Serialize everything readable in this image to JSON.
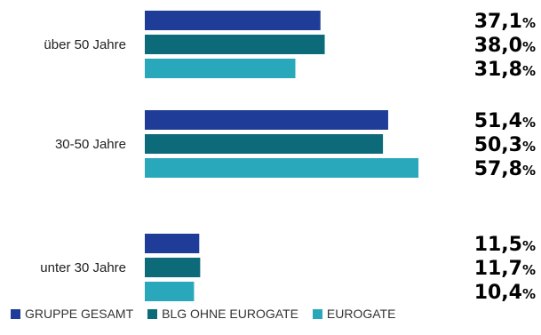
{
  "chart_data": {
    "type": "bar",
    "orientation": "horizontal",
    "categories": [
      "über 50 Jahre",
      "30-50 Jahre",
      "unter 30 Jahre"
    ],
    "series": [
      {
        "name": "GRUPPE GESAMT",
        "color": "#1f3d98",
        "values": [
          37.1,
          51.4,
          11.5
        ],
        "labels": [
          "37,1",
          "51,4",
          "11,5"
        ]
      },
      {
        "name": "BLG OHNE EUROGATE",
        "color": "#0d6b79",
        "values": [
          38.0,
          50.3,
          11.7
        ],
        "labels": [
          "38,0",
          "50,3",
          "11,7"
        ]
      },
      {
        "name": "EUROGATE",
        "color": "#2aa8bb",
        "values": [
          31.8,
          57.8,
          10.4
        ],
        "labels": [
          "31,8",
          "57,8",
          "10,4"
        ]
      }
    ],
    "value_suffix": "%",
    "xlim": [
      0,
      100
    ],
    "grid": false,
    "legend_position": "bottom-left"
  }
}
